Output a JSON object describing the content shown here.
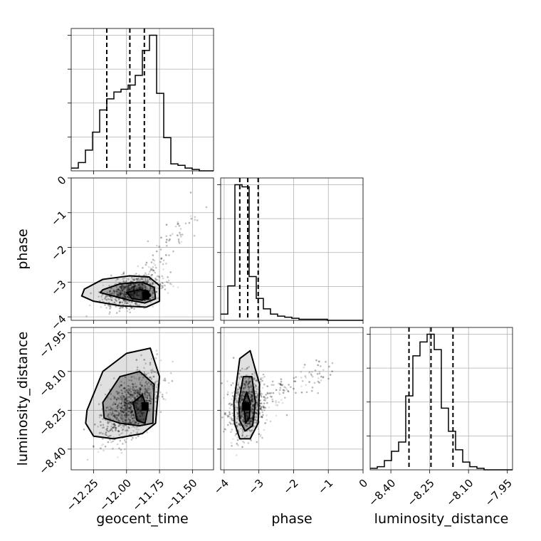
{
  "chart_data": {
    "type": "corner",
    "parameters": [
      "geocent_time",
      "phase",
      "luminosity_distance"
    ],
    "axes": {
      "geocent_time": {
        "label": "geocent_time",
        "range": [
          -12.42,
          -11.34
        ],
        "ticks": [
          -12.25,
          -12.0,
          -11.75,
          -11.5
        ],
        "tick_labels": [
          "−12.25",
          "−12.00",
          "−11.75",
          "−11.50"
        ]
      },
      "phase": {
        "label": "phase",
        "range": [
          -4.1,
          0.0
        ],
        "ticks": [
          -4,
          -3,
          -2,
          -1,
          0
        ],
        "tick_labels": [
          "−4",
          "−3",
          "−2",
          "−1",
          "0"
        ]
      },
      "luminosity_distance": {
        "label": "luminosity_distance",
        "range": [
          -8.48,
          -7.93
        ],
        "ticks": [
          -8.4,
          -8.25,
          -8.1,
          -7.95
        ],
        "tick_labels": [
          "−8.40",
          "−8.25",
          "−8.10",
          "−7.95"
        ]
      }
    },
    "histograms": {
      "geocent_time": {
        "bin_start": -12.42,
        "bin_width": 0.054,
        "counts": [
          2,
          6,
          15,
          28,
          44,
          52,
          57,
          59,
          62,
          69,
          87,
          98,
          56,
          24,
          5,
          4,
          2,
          1,
          0,
          0
        ],
        "quantiles": [
          -12.15,
          -11.975,
          -11.865
        ]
      },
      "phase": {
        "bin_start": -4.1,
        "bin_width": 0.205,
        "counts": [
          6,
          33,
          130,
          128,
          42,
          21,
          11,
          6,
          4,
          3,
          2,
          1,
          1,
          1,
          1,
          0,
          0,
          0,
          0,
          0
        ],
        "quantiles": [
          -3.55,
          -3.32,
          -3.02
        ]
      },
      "luminosity_distance": {
        "bin_start": -8.48,
        "bin_width": 0.0275,
        "counts": [
          1,
          2,
          6,
          12,
          18,
          48,
          74,
          83,
          88,
          78,
          40,
          25,
          13,
          5,
          2,
          1,
          0,
          0,
          0,
          0
        ],
        "quantiles": [
          -8.33,
          -8.245,
          -8.16
        ]
      }
    },
    "contour_levels": [
      0.39,
      0.86,
      0.99
    ],
    "grid": true
  }
}
